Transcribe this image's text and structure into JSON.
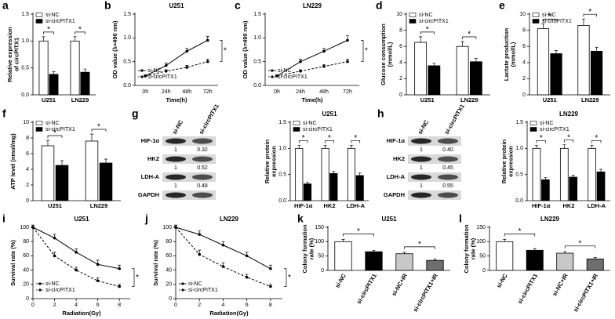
{
  "chart_data": [
    {
      "type": "bar",
      "panel": "a",
      "ylabel": "Relative expression of circPITX1",
      "categories": [
        "U251",
        "LN229"
      ],
      "series": [
        {
          "name": "si-NC",
          "color": "#ffffff",
          "values": [
            1.0,
            1.0
          ],
          "errors": [
            0.08,
            0.08
          ]
        },
        {
          "name": "si-circPITX1",
          "color": "#000000",
          "values": [
            0.38,
            0.42
          ],
          "errors": [
            0.05,
            0.06
          ]
        }
      ],
      "significance": [
        "*",
        "*"
      ],
      "ylim": [
        0,
        1.5
      ],
      "yticks": [
        {
          "value": 0,
          "label": "0.0"
        },
        0.5,
        {
          "value": 1,
          "label": "1.0"
        },
        1.5
      ]
    },
    {
      "type": "line",
      "panel": "b",
      "title": "U251",
      "xlabel": "Time(h)",
      "ylabel": "OD value (λ=490 nm)",
      "categories": [
        "0h",
        "24h",
        "48h",
        "72h"
      ],
      "series": [
        {
          "name": "si-NC",
          "color": "#000000",
          "style": "solid",
          "values": [
            0.2,
            0.42,
            0.72,
            0.95
          ],
          "errors": [
            0.02,
            0.05,
            0.06,
            0.08
          ]
        },
        {
          "name": "si-circPITX1",
          "color": "#000000",
          "style": "dashed",
          "values": [
            0.2,
            0.3,
            0.38,
            0.5
          ],
          "errors": [
            0.02,
            0.03,
            0.04,
            0.05
          ]
        }
      ],
      "significance": "*",
      "ylim": [
        0,
        1.5
      ],
      "yticks": [
        {
          "value": 0,
          "label": "0.0"
        },
        0.5,
        {
          "value": 1,
          "label": "1.0"
        },
        1.5
      ]
    },
    {
      "type": "line",
      "panel": "c",
      "title": "LN229",
      "xlabel": "Time(h)",
      "ylabel": "OD value (λ=490 nm)",
      "categories": [
        "0h",
        "24h",
        "48h",
        "72h"
      ],
      "series": [
        {
          "name": "si-NC",
          "color": "#000000",
          "style": "solid",
          "values": [
            0.2,
            0.5,
            0.72,
            0.95
          ],
          "errors": [
            0.02,
            0.05,
            0.06,
            0.1
          ]
        },
        {
          "name": "si-circPITX1",
          "color": "#000000",
          "style": "dashed",
          "values": [
            0.2,
            0.3,
            0.4,
            0.5
          ],
          "errors": [
            0.02,
            0.03,
            0.04,
            0.05
          ]
        }
      ],
      "significance": "*",
      "ylim": [
        0,
        1.5
      ],
      "yticks": [
        {
          "value": 0,
          "label": "0.0"
        },
        0.5,
        {
          "value": 1,
          "label": "1.0"
        },
        1.5
      ]
    },
    {
      "type": "bar",
      "panel": "d",
      "ylabel": "Glucose consumption (mmol/L)",
      "categories": [
        "U251",
        "LN229"
      ],
      "series": [
        {
          "name": "si-NC",
          "color": "#ffffff",
          "values": [
            6.5,
            6.0
          ],
          "errors": [
            0.7,
            0.6
          ]
        },
        {
          "name": "si-circPITX1",
          "color": "#000000",
          "values": [
            3.6,
            4.1
          ],
          "errors": [
            0.3,
            0.4
          ]
        }
      ],
      "significance": [
        "*",
        "*"
      ],
      "ylim": [
        0,
        10
      ],
      "yticks": [
        0,
        2,
        4,
        6,
        8,
        10
      ]
    },
    {
      "type": "bar",
      "panel": "e",
      "ylabel": "Lactate production (mmol/L)",
      "categories": [
        "U251",
        "LN229"
      ],
      "series": [
        {
          "name": "si-NC",
          "color": "#ffffff",
          "values": [
            8.2,
            8.6
          ],
          "errors": [
            0.6,
            0.8
          ]
        },
        {
          "name": "si-circPITX1",
          "color": "#000000",
          "values": [
            5.1,
            5.4
          ],
          "errors": [
            0.4,
            0.5
          ]
        }
      ],
      "significance": [
        "*",
        "*"
      ],
      "ylim": [
        0,
        10
      ],
      "yticks": [
        0,
        2,
        4,
        6,
        8,
        10
      ]
    },
    {
      "type": "bar",
      "panel": "f",
      "ylabel": "ATP level (nmol/mg)",
      "categories": [
        "U251",
        "LN229"
      ],
      "series": [
        {
          "name": "si-NC",
          "color": "#ffffff",
          "values": [
            7.0,
            7.6
          ],
          "errors": [
            0.7,
            0.9
          ]
        },
        {
          "name": "si-circPITX1",
          "color": "#000000",
          "values": [
            4.5,
            4.8
          ],
          "errors": [
            0.6,
            0.5
          ]
        }
      ],
      "significance": [
        "*",
        "*"
      ],
      "ylim": [
        0,
        10
      ],
      "yticks": [
        0,
        2,
        4,
        6,
        8,
        10
      ]
    },
    {
      "type": "blot",
      "panel": "g",
      "columns": [
        "si-NC",
        "si-circPITX1"
      ],
      "rows": [
        {
          "name": "HIF-1α",
          "ratios": [
            "1",
            "0.32"
          ]
        },
        {
          "name": "HK2",
          "ratios": [
            "1",
            "0.52"
          ]
        },
        {
          "name": "LDH-A",
          "ratios": [
            "1",
            "0.48"
          ]
        },
        {
          "name": "GAPDH"
        }
      ]
    },
    {
      "type": "bar",
      "title": "U251",
      "ylabel": "Relative protein expression",
      "categories": [
        "HIF-1α",
        "HK2",
        "LDH-A"
      ],
      "series": [
        {
          "name": "si-NC",
          "color": "#ffffff",
          "values": [
            1.0,
            1.0,
            1.0
          ],
          "errors": [
            0.06,
            0.06,
            0.06
          ]
        },
        {
          "name": "si-circPITX1",
          "color": "#000000",
          "values": [
            0.32,
            0.52,
            0.48
          ],
          "errors": [
            0.03,
            0.04,
            0.05
          ]
        }
      ],
      "significance": [
        "*",
        "*",
        "*"
      ],
      "ylim": [
        0,
        1.5
      ],
      "yticks": [
        {
          "value": 0,
          "label": "0.0"
        },
        0.5,
        {
          "value": 1,
          "label": "1.0"
        },
        1.5
      ]
    },
    {
      "type": "blot",
      "panel": "h",
      "columns": [
        "si-NC",
        "si-circPITX1"
      ],
      "rows": [
        {
          "name": "HIF-1α",
          "ratios": [
            "1",
            "0.40"
          ]
        },
        {
          "name": "HK2",
          "ratios": [
            "1",
            "0.45"
          ]
        },
        {
          "name": "LDH-A",
          "ratios": [
            "1",
            "0.55"
          ]
        },
        {
          "name": "GAPDH"
        }
      ]
    },
    {
      "type": "bar",
      "title": "LN229",
      "ylabel": "Relative protein expression",
      "categories": [
        "HIF-1α",
        "HK2",
        "LDH-A"
      ],
      "series": [
        {
          "name": "si-NC",
          "color": "#ffffff",
          "values": [
            1.0,
            1.0,
            1.0
          ],
          "errors": [
            0.06,
            0.07,
            0.06
          ]
        },
        {
          "name": "si-circPITX1",
          "color": "#000000",
          "values": [
            0.4,
            0.45,
            0.55
          ],
          "errors": [
            0.04,
            0.04,
            0.05
          ]
        }
      ],
      "significance": [
        "*",
        "*",
        "*"
      ],
      "ylim": [
        0,
        1.5
      ],
      "yticks": [
        {
          "value": 0,
          "label": "0.0"
        },
        0.5,
        {
          "value": 1,
          "label": "1.0"
        },
        1.5
      ]
    },
    {
      "type": "line",
      "panel": "i",
      "title": "U251",
      "xlabel": "Radiation(Gy)",
      "ylabel": "Survival rate (%)",
      "x": [
        0,
        2,
        4,
        6,
        8
      ],
      "xlim": [
        0,
        9
      ],
      "xticks": [
        0,
        2,
        4,
        6,
        8
      ],
      "series": [
        {
          "name": "si-NC",
          "color": "#000000",
          "style": "solid",
          "values": [
            100,
            85,
            65,
            48,
            42
          ],
          "errors": [
            3,
            5,
            5,
            6,
            5
          ]
        },
        {
          "name": "si-circPITX1",
          "color": "#000000",
          "style": "dashed",
          "values": [
            100,
            60,
            40,
            25,
            17
          ],
          "errors": [
            3,
            5,
            4,
            4,
            3
          ]
        }
      ],
      "significance": "*",
      "ylim": [
        0,
        100
      ],
      "yticks": [
        0,
        20,
        40,
        60,
        80,
        100
      ]
    },
    {
      "type": "line",
      "panel": "j",
      "title": "LN229",
      "xlabel": "Radiation(Gy)",
      "ylabel": "Survival rate (%)",
      "x": [
        0,
        2,
        4,
        6,
        8
      ],
      "xlim": [
        0,
        9
      ],
      "xticks": [
        0,
        2,
        4,
        6,
        8
      ],
      "series": [
        {
          "name": "si-NC",
          "color": "#000000",
          "style": "solid",
          "values": [
            100,
            90,
            75,
            60,
            42
          ],
          "errors": [
            3,
            5,
            5,
            5,
            5
          ]
        },
        {
          "name": "si-circPITX1",
          "color": "#000000",
          "style": "dashed",
          "values": [
            100,
            62,
            45,
            30,
            17
          ],
          "errors": [
            3,
            6,
            5,
            4,
            3
          ]
        }
      ],
      "significance": "*",
      "ylim": [
        0,
        100
      ],
      "yticks": [
        0,
        20,
        40,
        60,
        80,
        100
      ]
    },
    {
      "type": "bar",
      "panel": "k",
      "title": "U251",
      "ylabel": "Colony formation rate (%)",
      "categories": [
        "si-NC",
        "si-circPITX1",
        "si-NC+IR",
        "si-circPITX1+IR"
      ],
      "values": [
        100,
        65,
        58,
        35
      ],
      "errors": [
        8,
        5,
        5,
        5
      ],
      "colors": [
        "#ffffff",
        "#000000",
        "#c8c8c8",
        "#6e6e6e"
      ],
      "significance": [
        "*",
        null,
        "*"
      ],
      "ylim": [
        0,
        150
      ],
      "yticks": [
        0,
        50,
        100,
        150
      ]
    },
    {
      "type": "bar",
      "panel": "l",
      "title": "LN229",
      "ylabel": "Colony formation rate (%)",
      "categories": [
        "si-NC",
        "si-circPITX1",
        "si-NC+IR",
        "si-circPITX1+IR"
      ],
      "values": [
        100,
        70,
        60,
        40
      ],
      "errors": [
        8,
        6,
        6,
        5
      ],
      "colors": [
        "#ffffff",
        "#000000",
        "#c8c8c8",
        "#6e6e6e"
      ],
      "significance": [
        "*",
        null,
        "*"
      ],
      "ylim": [
        0,
        150
      ],
      "yticks": [
        0,
        50,
        100,
        150
      ]
    }
  ]
}
